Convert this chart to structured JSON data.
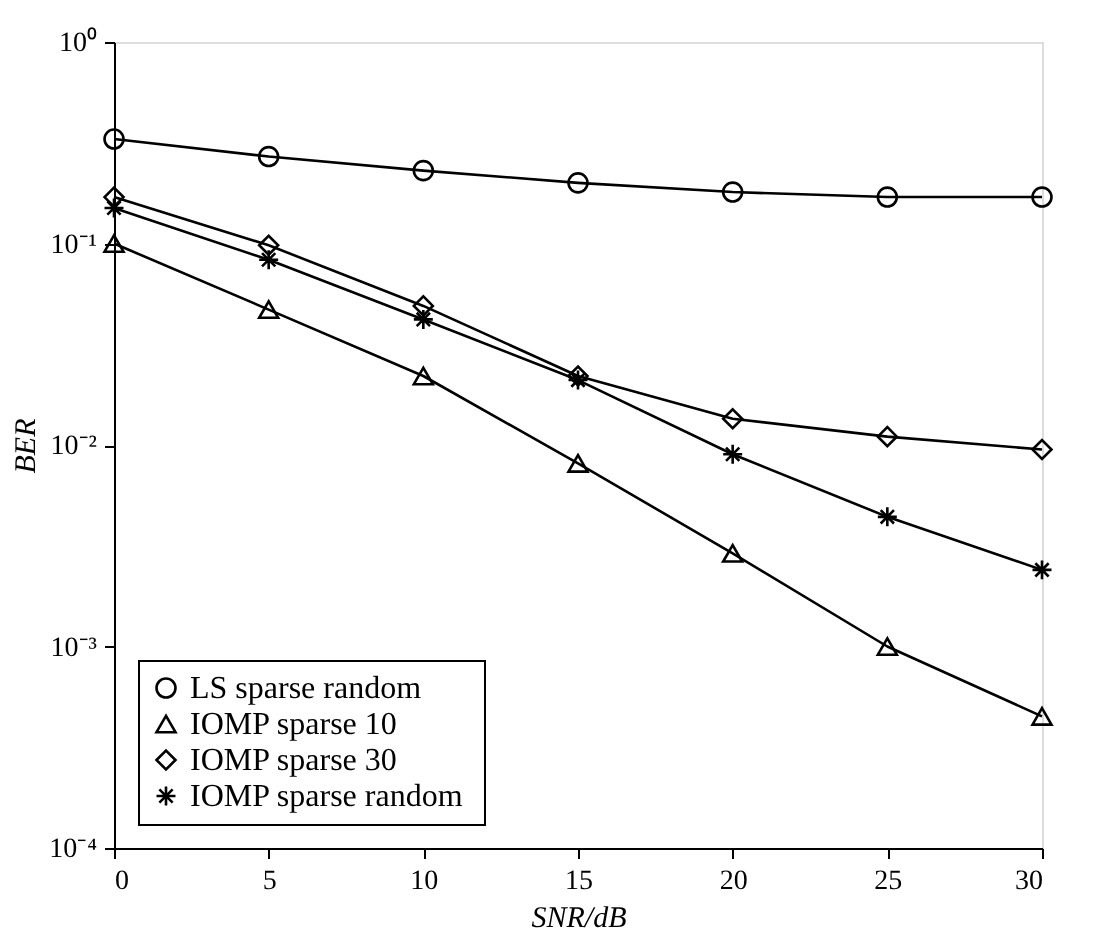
{
  "chart_data": {
    "type": "line",
    "xlabel": "SNR/dB",
    "ylabel": "BER",
    "log": "y",
    "x": [
      0,
      5,
      10,
      15,
      20,
      25,
      30
    ],
    "xlim": [
      0,
      30
    ],
    "xticks": [
      0,
      5,
      10,
      15,
      20,
      25,
      30
    ],
    "ylim": [
      0.0001,
      1
    ],
    "yticks": [
      {
        "value": 1,
        "label": "10⁰"
      },
      {
        "value": 0.1,
        "label": "10⁻¹"
      },
      {
        "value": 0.01,
        "label": "10⁻²"
      },
      {
        "value": 0.001,
        "label": "10⁻³"
      },
      {
        "value": 0.0001,
        "label": "10⁻⁴"
      }
    ],
    "grid": false,
    "legend": "bottom left",
    "line_style": "solid",
    "series": [
      {
        "name": "LS  sparse random",
        "color": "#000000",
        "marker": "circle",
        "values": [
          0.33,
          0.27,
          0.23,
          0.2,
          0.18,
          0.17,
          0.17
        ]
      },
      {
        "name": "IOMP  sparse 10",
        "color": "#000000",
        "marker": "triangle",
        "values": [
          0.1,
          0.047,
          0.022,
          0.0081,
          0.0029,
          0.001,
          0.00045
        ]
      },
      {
        "name": "IOMP  sparse 30",
        "color": "#000000",
        "marker": "diamond",
        "values": [
          0.17,
          0.098,
          0.049,
          0.022,
          0.0135,
          0.011,
          0.0095
        ]
      },
      {
        "name": "IOMP  sparse random",
        "color": "#000000",
        "marker": "cross",
        "values": [
          0.15,
          0.083,
          0.042,
          0.021,
          0.009,
          0.0044,
          0.0024
        ]
      }
    ]
  }
}
